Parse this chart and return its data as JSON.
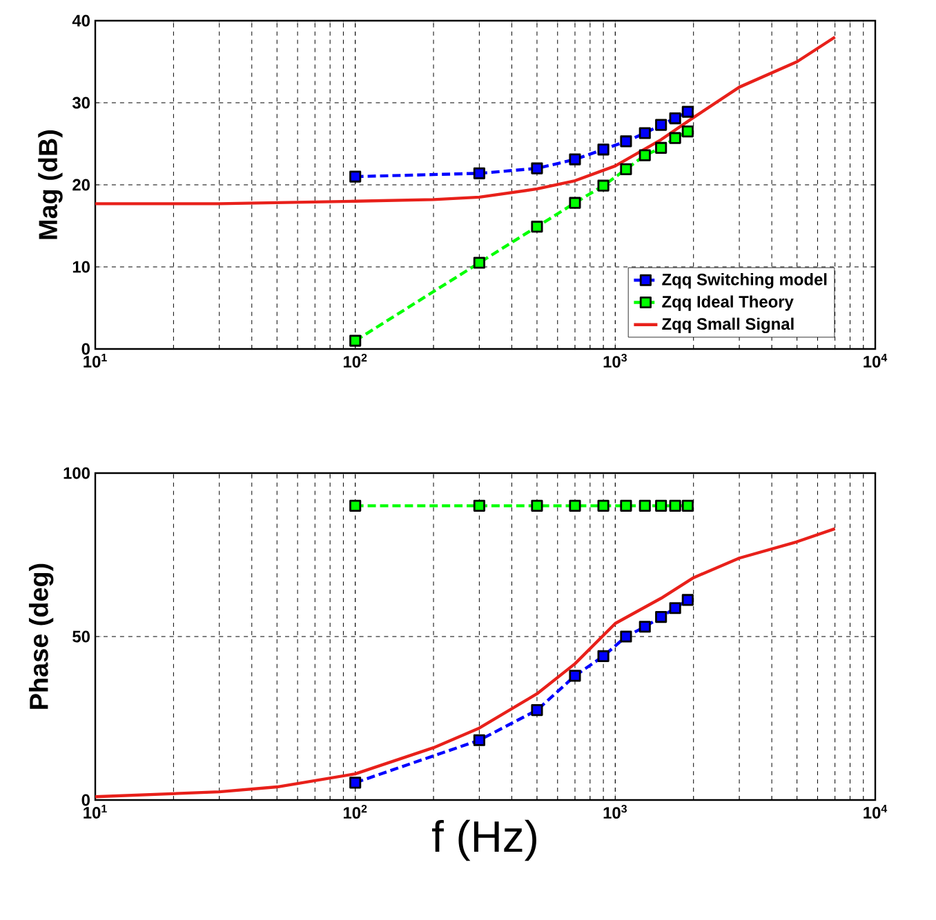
{
  "chart_data": [
    {
      "type": "line",
      "ylabel": "Mag (dB)",
      "log": "x",
      "grid": true,
      "legend": "bottom right",
      "xlim": [
        10,
        10000
      ],
      "xticks": [
        {
          "value": 10,
          "label": "10$^{1}$"
        },
        {
          "value": 100,
          "label": "10$^{2}$"
        },
        {
          "value": 1000,
          "label": "10$^{3}$"
        },
        {
          "value": 10000,
          "label": "10$^{4}$"
        }
      ],
      "ylim": [
        0,
        40
      ],
      "yticks": [
        0,
        10,
        20,
        30,
        40
      ],
      "series": [
        {
          "name": "Zqq Switching model",
          "color": "#0000ff",
          "marker": "square",
          "line_style": "dashed",
          "x": [
            100,
            300,
            500,
            700,
            900,
            1100,
            1300,
            1500,
            1700,
            1900
          ],
          "values": [
            21,
            21.4,
            22,
            23.1,
            24.3,
            25.3,
            26.3,
            27.3,
            28.1,
            28.9
          ]
        },
        {
          "name": "Zqq Ideal Theory",
          "color": "#00ff00",
          "marker": "square",
          "line_style": "dashed",
          "x": [
            100,
            300,
            500,
            700,
            900,
            1100,
            1300,
            1500,
            1700,
            1900
          ],
          "values": [
            1,
            10.5,
            14.9,
            17.8,
            19.9,
            21.9,
            23.6,
            24.5,
            25.7,
            26.5
          ]
        },
        {
          "name": "Zqq Small Signal",
          "color": "#e8201a",
          "marker": "none",
          "line_style": "solid",
          "x": [
            10,
            30,
            100,
            200,
            300,
            500,
            700,
            1000,
            1500,
            2000,
            3000,
            5000,
            7000
          ],
          "values": [
            17.7,
            17.7,
            18,
            18.2,
            18.5,
            19.5,
            20.5,
            22.3,
            25.5,
            28.2,
            31.9,
            35,
            38
          ]
        }
      ]
    },
    {
      "type": "line",
      "xlabel": "f (Hz)",
      "ylabel": "Phase (deg)",
      "log": "x",
      "grid": true,
      "xlim": [
        10,
        10000
      ],
      "xticks": [
        {
          "value": 10,
          "label": "10$^{1}$"
        },
        {
          "value": 100,
          "label": "10$^{2}$"
        },
        {
          "value": 1000,
          "label": "10$^{3}$"
        },
        {
          "value": 10000,
          "label": "10$^{4}$"
        }
      ],
      "ylim": [
        0,
        100
      ],
      "yticks": [
        0,
        50,
        100
      ],
      "series": [
        {
          "color": "#0000ff",
          "marker": "square",
          "line_style": "dashed",
          "x": [
            100,
            300,
            500,
            700,
            900,
            1100,
            1300,
            1500,
            1700,
            1900
          ],
          "values": [
            5.3,
            18.3,
            27.5,
            38,
            44,
            50,
            53,
            56,
            58.7,
            61.2
          ]
        },
        {
          "color": "#00ff00",
          "marker": "square",
          "line_style": "dashed",
          "x": [
            100,
            300,
            500,
            700,
            900,
            1100,
            1300,
            1500,
            1700,
            1900
          ],
          "values": [
            90,
            90,
            90,
            90,
            90,
            90,
            90,
            90,
            90,
            90
          ]
        },
        {
          "color": "#e8201a",
          "marker": "none",
          "line_style": "solid",
          "x": [
            10,
            30,
            50,
            100,
            200,
            300,
            500,
            700,
            1000,
            1500,
            2000,
            3000,
            5000,
            7000
          ],
          "values": [
            1,
            2.5,
            4,
            8,
            16,
            22,
            32.5,
            41.7,
            54,
            61.7,
            68,
            74,
            79,
            83
          ]
        }
      ]
    }
  ]
}
